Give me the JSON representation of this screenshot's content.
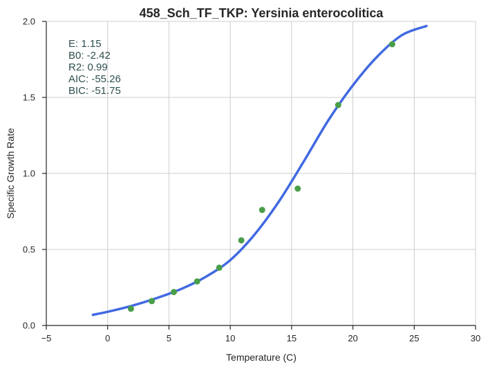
{
  "chart_data": {
    "type": "scatter",
    "title": "458_Sch_TF_TKP: Yersinia enterocolitica",
    "xlabel": "Temperature (C)",
    "ylabel": "Specific Growth Rate",
    "xlim": [
      -5,
      30
    ],
    "ylim": [
      0,
      2.0
    ],
    "xticks": [
      -5,
      0,
      5,
      10,
      15,
      20,
      25,
      30
    ],
    "xtick_labels": [
      "−5",
      "0",
      "5",
      "10",
      "15",
      "20",
      "25",
      "30"
    ],
    "yticks": [
      0,
      0.5,
      1.0,
      1.5,
      2.0
    ],
    "ytick_labels": [
      "0.0",
      "0.5",
      "1.0",
      "1.5",
      "2.0"
    ],
    "grid": true,
    "annotations": [
      "E:  1.15",
      "B0:  -2.42",
      "R2:  0.99",
      "AIC: -55.26",
      "BIC: -51.75"
    ],
    "series": [
      {
        "kind": "points",
        "color": "#4a9e4a",
        "x": [
          1.9,
          3.6,
          5.4,
          7.3,
          9.1,
          10.9,
          12.6,
          15.5,
          18.8,
          23.2
        ],
        "y": [
          0.11,
          0.16,
          0.22,
          0.29,
          0.38,
          0.56,
          0.76,
          0.9,
          1.45,
          1.85
        ]
      },
      {
        "kind": "fit-line",
        "color": "#4169e1",
        "x": [
          -1.2,
          0,
          2,
          4,
          6,
          8,
          10,
          12,
          14,
          16,
          18,
          20,
          22,
          24,
          26
        ],
        "y": [
          0.07,
          0.09,
          0.13,
          0.18,
          0.24,
          0.32,
          0.43,
          0.6,
          0.82,
          1.08,
          1.35,
          1.58,
          1.77,
          1.91,
          1.97
        ]
      }
    ]
  }
}
